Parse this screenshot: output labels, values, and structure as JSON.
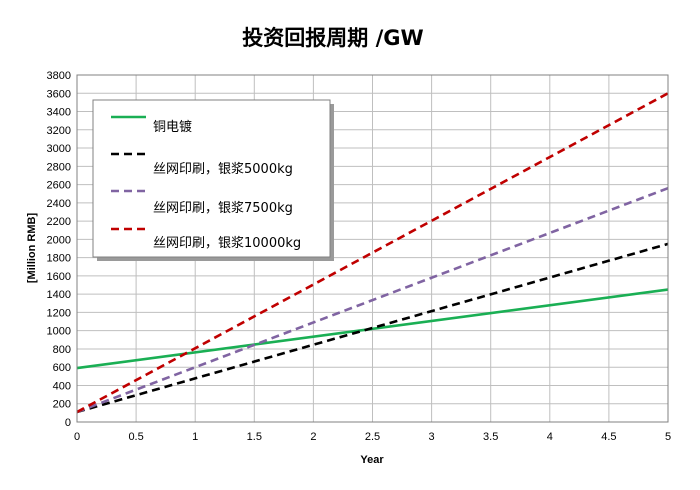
{
  "chart_data": {
    "type": "line",
    "title": "投资回报周期 /GW",
    "xlabel": "Year",
    "ylabel": "[Million RMB]",
    "xlim": [
      0,
      5
    ],
    "ylim": [
      0,
      3800
    ],
    "x_ticks": [
      "0",
      "0.5",
      "1",
      "1.5",
      "2",
      "2.5",
      "3",
      "3.5",
      "4",
      "4.5",
      "5"
    ],
    "y_ticks": [
      "0",
      "200",
      "400",
      "600",
      "800",
      "1000",
      "1200",
      "1400",
      "1600",
      "1800",
      "2000",
      "2200",
      "2400",
      "2600",
      "2800",
      "3000",
      "3200",
      "3400",
      "3600",
      "3800"
    ],
    "grid": true,
    "legend_position": "top-left",
    "series": [
      {
        "name": "铜电镀",
        "color": "#1aaf54",
        "style": "solid",
        "x": [
          0,
          5
        ],
        "y": [
          590,
          1450
        ]
      },
      {
        "name": "丝网印刷，银浆5000kg",
        "color": "#000000",
        "style": "dashed",
        "x": [
          0,
          5
        ],
        "y": [
          110,
          1950
        ]
      },
      {
        "name": "丝网印刷，银浆7500kg",
        "color": "#8064a2",
        "style": "dashed",
        "x": [
          0,
          5
        ],
        "y": [
          110,
          2560
        ]
      },
      {
        "name": "丝网印刷，银浆10000kg",
        "color": "#c00000",
        "style": "dashed",
        "x": [
          0,
          5
        ],
        "y": [
          110,
          3600
        ]
      }
    ]
  }
}
